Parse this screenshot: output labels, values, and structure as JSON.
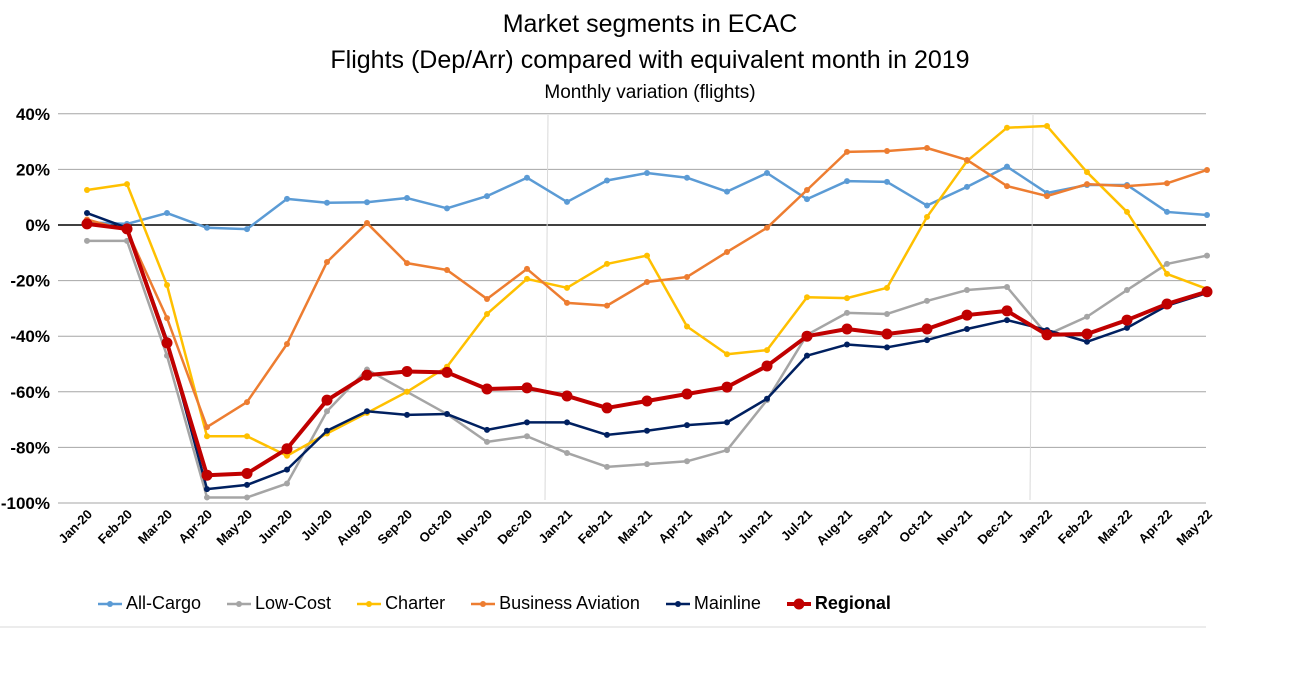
{
  "chart_data": {
    "type": "line",
    "title": "Market segments in ECAC",
    "subtitle": "Flights (Dep/Arr) compared with equivalent month in 2019",
    "subtitle2": "Monthly variation (flights)",
    "xlabel": "",
    "ylabel": "",
    "ylim": [
      -100,
      40
    ],
    "yticks": [
      "40%",
      "20%",
      "0%",
      "-20%",
      "-40%",
      "-60%",
      "-80%",
      "-100%"
    ],
    "ytick_values": [
      40,
      20,
      0,
      -20,
      -40,
      -60,
      -80,
      -100
    ],
    "grid": "horizontal",
    "legend": "bottom",
    "categories": [
      "Jan-20",
      "Feb-20",
      "Mar-20",
      "Apr-20",
      "May-20",
      "Jun-20",
      "Jul-20",
      "Aug-20",
      "Sep-20",
      "Oct-20",
      "Nov-20",
      "Dec-20",
      "Jan-21",
      "Feb-21",
      "Mar-21",
      "Apr-21",
      "May-21",
      "Jun-21",
      "Jul-21",
      "Aug-21",
      "Sep-21",
      "Oct-21",
      "Nov-21",
      "Dec-21",
      "Jan-22",
      "Feb-22",
      "Mar-22",
      "Apr-22",
      "May-22"
    ],
    "series": [
      {
        "name": "All-Cargo",
        "color": "#5B9BD5",
        "values": [
          1,
          0.4,
          4.3,
          -1,
          -1.5,
          9.4,
          8,
          8.2,
          9.7,
          6,
          10.4,
          17,
          8.3,
          16,
          18.7,
          17,
          12,
          18.7,
          9.3,
          15.8,
          15.5,
          7,
          13.7,
          21,
          11.5,
          14.4,
          14.4,
          4.7,
          3.6
        ]
      },
      {
        "name": "Low-Cost",
        "color": "#A5A5A5",
        "values": [
          -5.7,
          -5.7,
          -47,
          -98,
          -98,
          -93,
          -67,
          -52,
          -60,
          -68,
          -78,
          -76,
          -82,
          -87,
          -86,
          -85,
          -81,
          -63,
          -39.5,
          -31.6,
          -32,
          -27.3,
          -23.4,
          -22.3,
          -39.5,
          -33,
          -23.4,
          -14,
          -11
        ]
      },
      {
        "name": "Charter",
        "color": "#FFC000",
        "values": [
          12.6,
          14.7,
          -21.6,
          -76,
          -76,
          -83,
          -75,
          -67.6,
          -60,
          -51,
          -32,
          -19.4,
          -22.6,
          -14,
          -11,
          -36.5,
          -46.5,
          -45,
          -26,
          -26.3,
          -22.6,
          2.9,
          23,
          35,
          35.6,
          19,
          4.7,
          -17.6,
          -23
        ]
      },
      {
        "name": "Business Aviation",
        "color": "#ED7D31",
        "values": [
          2,
          -2,
          -33.5,
          -72.7,
          -63.7,
          -42.8,
          -13.3,
          0.7,
          -13.7,
          -16.2,
          -26.6,
          -15.8,
          -28,
          -29,
          -20.5,
          -18.7,
          -9.7,
          -1,
          12.6,
          26.3,
          26.6,
          27.7,
          23.4,
          14,
          10.4,
          14.7,
          14,
          15,
          19.8
        ]
      },
      {
        "name": "Mainline",
        "color": "#002060",
        "values": [
          4.3,
          -1,
          -41.4,
          -95,
          -93.5,
          -88,
          -74,
          -67,
          -68.3,
          -68,
          -73.7,
          -71,
          -71,
          -75.5,
          -74,
          -72,
          -71,
          -62.5,
          -47,
          -43,
          -44,
          -41.4,
          -37.4,
          -34.2,
          -37.8,
          -42,
          -37,
          -29,
          -24.5
        ]
      },
      {
        "name": "Regional",
        "color": "#C00000",
        "bold": true,
        "values": [
          0.4,
          -1.4,
          -42.4,
          -90,
          -89.4,
          -80.5,
          -63,
          -54,
          -52.7,
          -53,
          -59,
          -58.6,
          -61.5,
          -65.8,
          -63.3,
          -60.8,
          -58.3,
          -50.7,
          -40,
          -37.4,
          -39.2,
          -37.4,
          -32.4,
          -30.9,
          -39.5,
          -39.2,
          -34.2,
          -28.4,
          -24
        ]
      }
    ]
  }
}
